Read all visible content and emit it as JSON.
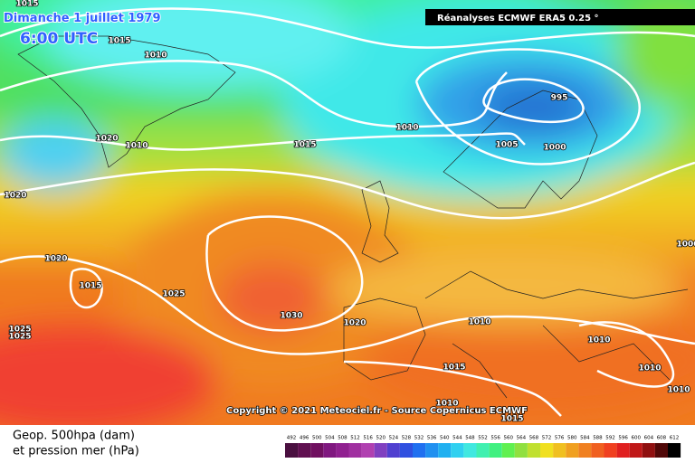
{
  "header": {
    "date": "Dimanche 1 juillet 1979",
    "time": "6:00 UTC",
    "source": "Réanalyses ECMWF ERA5 0.25 °"
  },
  "isobar_labels": [
    1015,
    1015,
    1010,
    1020,
    1010,
    1015,
    1010,
    995,
    1005,
    1000,
    1020,
    1020,
    1015,
    1025,
    1030,
    1025,
    1025,
    1020,
    1010,
    1010,
    1010,
    1015,
    1010,
    1010,
    1015,
    1000
  ],
  "copyright": "Copyright © 2021 Meteociel.fr - Source Copernicus ECMWF",
  "legend": {
    "line1": "Geop. 500hpa (dam)",
    "line2": "et pression mer (hPa)",
    "scale": [
      492,
      496,
      500,
      504,
      508,
      512,
      516,
      520,
      524,
      528,
      532,
      536,
      540,
      544,
      548,
      552,
      556,
      560,
      564,
      568,
      572,
      576,
      580,
      584,
      588,
      592,
      596,
      600,
      604,
      608,
      612
    ]
  }
}
